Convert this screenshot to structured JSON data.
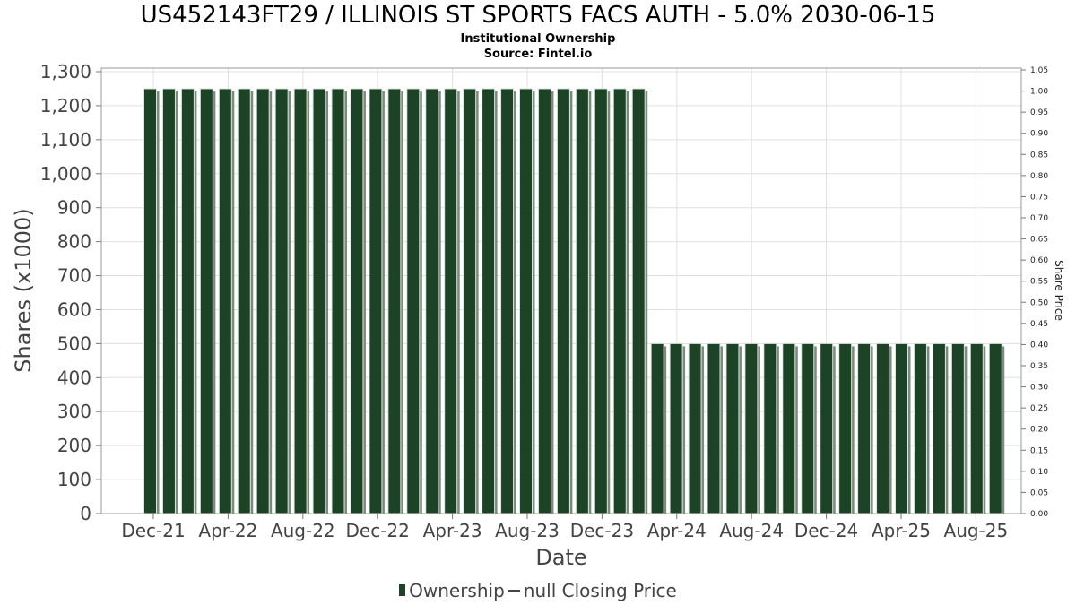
{
  "title": "US452143FT29 / ILLINOIS ST SPORTS FACS AUTH - 5.0% 2030-06-15",
  "subtitle_line1": "Institutional Ownership",
  "subtitle_line2": "Source: Fintel.io",
  "legend": {
    "ownership_label": "Ownership",
    "price_label": "null Closing Price"
  },
  "colors": {
    "bar": "#1c4326",
    "bar_shadow": "#7d8a7e",
    "grid": "#e0e0e0",
    "text": "#444444"
  },
  "chart_data": {
    "type": "bar",
    "xlabel": "Date",
    "ylabel": "Shares (x1000)",
    "y2label": "Share Price",
    "ylim": [
      0,
      1300
    ],
    "y2lim": [
      0,
      1.05
    ],
    "yticks": [
      "0",
      "100",
      "200",
      "300",
      "400",
      "500",
      "600",
      "700",
      "800",
      "900",
      "1,000",
      "1,100",
      "1,200",
      "1,300"
    ],
    "y2ticks": [
      "0.00",
      "0.05",
      "0.10",
      "0.15",
      "0.20",
      "0.25",
      "0.30",
      "0.35",
      "0.40",
      "0.45",
      "0.50",
      "0.55",
      "0.60",
      "0.65",
      "0.70",
      "0.75",
      "0.80",
      "0.85",
      "0.90",
      "0.95",
      "1.00",
      "1.05"
    ],
    "xticks": [
      "Dec-21",
      "Apr-22",
      "Aug-22",
      "Dec-22",
      "Apr-23",
      "Aug-23",
      "Dec-23",
      "Apr-24",
      "Aug-24",
      "Dec-24",
      "Apr-25",
      "Aug-25"
    ],
    "grid": true,
    "legend_position": "bottom",
    "series": [
      {
        "name": "Ownership",
        "values": [
          1250,
          1250,
          1250,
          1250,
          1250,
          1250,
          1250,
          1250,
          1250,
          1250,
          1250,
          1250,
          1250,
          1250,
          1250,
          1250,
          1250,
          1250,
          1250,
          1250,
          1250,
          1250,
          1250,
          1250,
          1250,
          1250,
          1250,
          500,
          500,
          500,
          500,
          500,
          500,
          500,
          500,
          500,
          500,
          500,
          500,
          500,
          500,
          500,
          500,
          500,
          500,
          500
        ]
      }
    ]
  }
}
